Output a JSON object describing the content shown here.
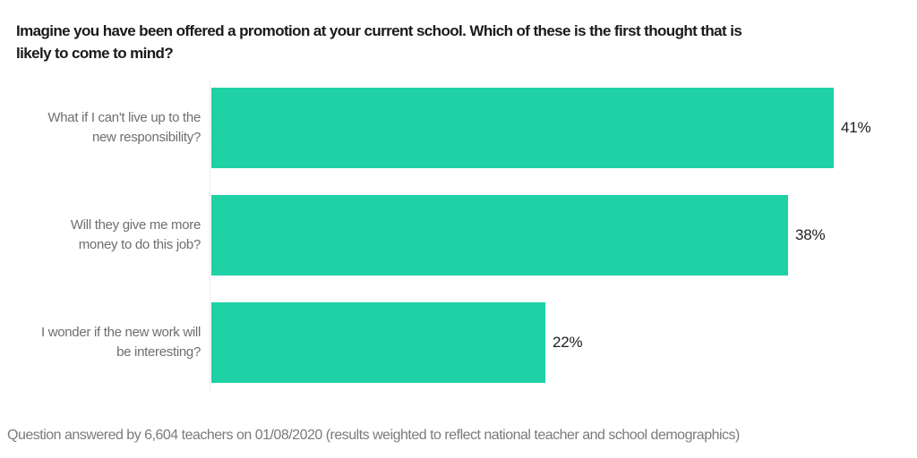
{
  "page": {
    "title": "Imagine you have been offered a promotion at your current school. Which of these is the first thought that is likely to come to mind?",
    "title_lines": [
      "Imagine you have been offered a promotion at your current school. Which of these is the first thought that is",
      "likely to come to mind?"
    ],
    "footer": "Question answered by 6,604 teachers on 01/08/2020 (results weighted to reflect national teacher and school demographics)"
  },
  "colors": {
    "bar": "#1fd1a5",
    "title_text": "#1a1a1a",
    "category_text": "#6e6e6e",
    "value_text": "#202020",
    "footer_text": "#7b7b7b",
    "axis_line": "#dcdcdc",
    "background": "#ffffff"
  },
  "chart_data": {
    "type": "bar",
    "orientation": "horizontal",
    "title": "Imagine you have been offered a promotion at your current school. Which of these is the first thought that is likely to come to mind?",
    "categories": [
      "What if I can't live up to the new responsibility?",
      "Will they give me more money to do this job?",
      "I wonder if the new work will be interesting?"
    ],
    "category_lines": [
      [
        "What if I can't live up to the",
        "new responsibility?"
      ],
      [
        "Will they give me more",
        "money to do this job?"
      ],
      [
        "I wonder if the new work will",
        "be interesting?"
      ]
    ],
    "values": [
      41,
      38,
      22
    ],
    "value_labels": [
      "41%",
      "38%",
      "22%"
    ],
    "unit": "percent",
    "value_label_position": "outside-end",
    "xlabel": "",
    "ylabel": "",
    "grid": false,
    "legend": false,
    "footnote": "Question answered by 6,604 teachers on 01/08/2020 (results weighted to reflect national teacher and school demographics)"
  }
}
